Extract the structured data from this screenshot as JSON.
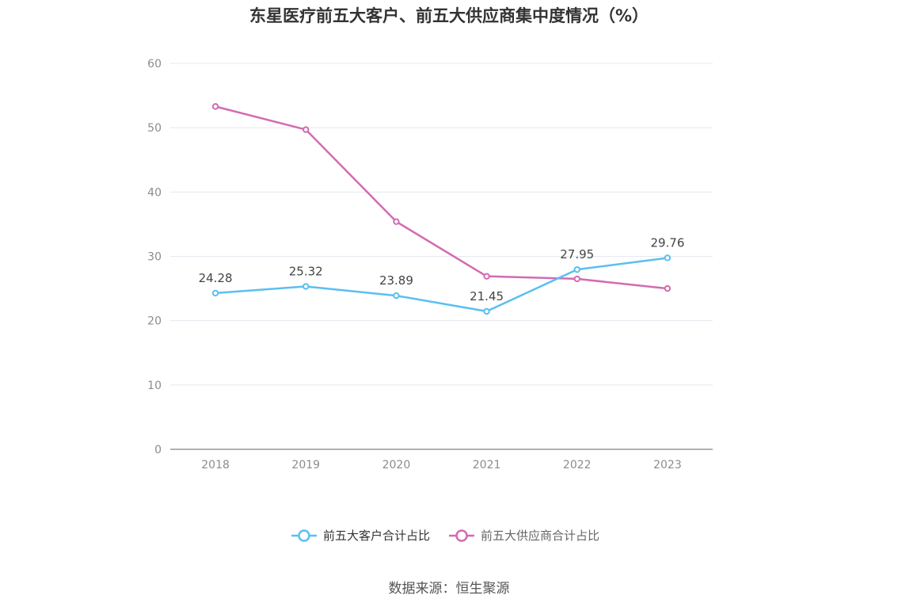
{
  "title": "东星医疗前五大客户、前五大供应商集中度情况（%）",
  "source": "数据来源：恒生聚源",
  "colors": {
    "series1": "#5bbff0",
    "series2": "#d36bb1",
    "grid": "#e6e8ef",
    "axis": "#999999"
  },
  "chart_data": {
    "type": "line",
    "title": "东星医疗前五大客户、前五大供应商集中度情况（%）",
    "categories": [
      "2018",
      "2019",
      "2020",
      "2021",
      "2022",
      "2023"
    ],
    "ylim": [
      0,
      60
    ],
    "yticks": [
      0,
      10,
      20,
      30,
      40,
      50,
      60
    ],
    "grid": true,
    "legend_position": "bottom",
    "series": [
      {
        "name": "前五大客户合计占比",
        "values": [
          24.28,
          25.32,
          23.89,
          21.45,
          27.95,
          29.76
        ],
        "labels": [
          "24.28",
          "25.32",
          "23.89",
          "21.45",
          "27.95",
          "29.76"
        ]
      },
      {
        "name": "前五大供应商合计占比",
        "values": [
          53.3,
          49.7,
          35.4,
          26.9,
          26.5,
          25.0
        ],
        "labels": []
      }
    ]
  }
}
